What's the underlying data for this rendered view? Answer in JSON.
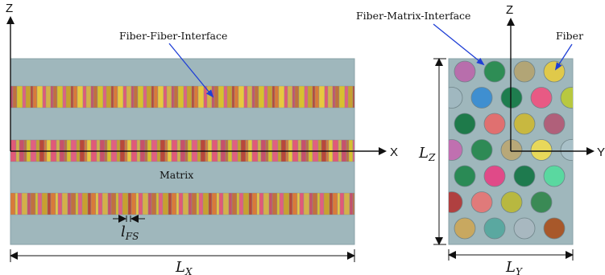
{
  "left_view": {
    "axis_z": "Z",
    "axis_x": "X",
    "label_fiber_fiber": "Fiber-Fiber-Interface",
    "label_matrix": "Matrix",
    "dim_lfs": {
      "base": "l",
      "sub": "FS"
    },
    "dim_lx": {
      "base": "L",
      "sub": "X"
    }
  },
  "right_view": {
    "axis_z": "Z",
    "axis_y": "Y",
    "label_fiber_matrix": "Fiber-Matrix-Interface",
    "label_fiber": "Fiber",
    "dim_lz": {
      "base": "L",
      "sub": "Z"
    },
    "dim_ly": {
      "base": "L",
      "sub": "Y"
    }
  },
  "colors": {
    "matrix": "#9fb7bc",
    "matrix_edge": "#8aa2a7",
    "arrow_blue": "#1f3fd6",
    "fiber_palette": [
      "#c6516a",
      "#2e8b57",
      "#d4b04a",
      "#3f6fc8",
      "#e05a78",
      "#1e7a5e",
      "#e8c840",
      "#7a5aa8",
      "#d87a3a",
      "#40c4b8",
      "#b8483a",
      "#a8c8d8",
      "#c8a030",
      "#2a9a70",
      "#e06080",
      "#8a3040",
      "#d8c030",
      "#3a8ad0",
      "#c07040",
      "#50b070"
    ],
    "fiber_circles": [
      [
        "#b86eac",
        "#2e8d55",
        "#b2a576",
        "#e0c94a"
      ],
      [
        "#a0b8c0",
        "#3f8fd0",
        "#1e7d4e",
        "#e85a84",
        "#b8c840"
      ],
      [
        "#1e7a4a",
        "#e07070",
        "#c8b840",
        "#b0607a"
      ],
      [
        "#c070b0",
        "#2e8a55",
        "#b8a878",
        "#e8d85a",
        "#a8c0c8"
      ],
      [
        "#2a8a55",
        "#e04a88",
        "#1e7a4e",
        "#5ad8a0"
      ],
      [
        "#b04040",
        "#e07a7a",
        "#b8b840",
        "#3a8a55"
      ],
      [
        "#c8a860",
        "#5aa8a0",
        "#a8b8c0",
        "#a8582a"
      ]
    ]
  }
}
